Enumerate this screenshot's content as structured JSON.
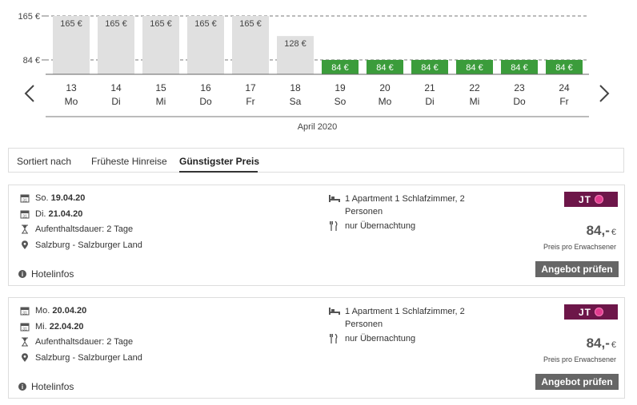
{
  "chart_data": {
    "type": "bar",
    "ylim": [
      0,
      165
    ],
    "yticks": [
      {
        "value": 165,
        "label": "165 €"
      },
      {
        "value": 84,
        "label": "84 €"
      }
    ],
    "xlabel": "April 2020",
    "categories": [
      {
        "day": "13",
        "weekday": "Mo"
      },
      {
        "day": "14",
        "weekday": "Di"
      },
      {
        "day": "15",
        "weekday": "Mi"
      },
      {
        "day": "16",
        "weekday": "Do"
      },
      {
        "day": "17",
        "weekday": "Fr"
      },
      {
        "day": "18",
        "weekday": "Sa"
      },
      {
        "day": "19",
        "weekday": "So"
      },
      {
        "day": "20",
        "weekday": "Mo"
      },
      {
        "day": "21",
        "weekday": "Di"
      },
      {
        "day": "22",
        "weekday": "Mi"
      },
      {
        "day": "23",
        "weekday": "Do"
      },
      {
        "day": "24",
        "weekday": "Fr"
      }
    ],
    "values": [
      165,
      165,
      165,
      165,
      165,
      128,
      84,
      84,
      84,
      84,
      84,
      84
    ],
    "value_labels": [
      "165 €",
      "165 €",
      "165 €",
      "165 €",
      "165 €",
      "128 €",
      "84 €",
      "84 €",
      "84 €",
      "84 €",
      "84 €",
      "84 €"
    ],
    "colors": {
      "default": "#e0e0e0",
      "cheapest": "#3b9c3b",
      "label_default": "#444444",
      "label_cheapest": "#ffffff"
    }
  },
  "sort": {
    "label": "Sortiert nach",
    "options": [
      {
        "label": "Früheste Hinreise",
        "active": false
      },
      {
        "label": "Günstigster Preis",
        "active": true
      }
    ]
  },
  "offers": [
    {
      "depart_prefix": "So.",
      "depart_date": "19.04.20",
      "return_prefix": "Di.",
      "return_date": "21.04.20",
      "duration": "Aufenthaltsdauer: 2 Tage",
      "location": "Salzburg - Salzburger Land",
      "room": "1 Apartment 1 Schlafzimmer, 2 Personen",
      "board": "nur Übernachtung",
      "logo": "JT",
      "price": "84,-",
      "currency": "€",
      "price_note": "Preis pro Erwachsener",
      "button": "Angebot prüfen",
      "hotelinfo": "Hotelinfos"
    },
    {
      "depart_prefix": "Mo.",
      "depart_date": "20.04.20",
      "return_prefix": "Mi.",
      "return_date": "22.04.20",
      "duration": "Aufenthaltsdauer: 2 Tage",
      "location": "Salzburg - Salzburger Land",
      "room": "1 Apartment 1 Schlafzimmer, 2 Personen",
      "board": "nur Übernachtung",
      "logo": "JT",
      "price": "84,-",
      "currency": "€",
      "price_note": "Preis pro Erwachsener",
      "button": "Angebot prüfen",
      "hotelinfo": "Hotelinfos"
    }
  ],
  "icons": {
    "prev": "chevron-left-icon",
    "next": "chevron-right-icon",
    "calendar": "calendar-icon",
    "duration": "hourglass-icon",
    "location": "location-pin-icon",
    "room": "bed-icon",
    "board": "cutlery-icon",
    "info": "info-icon"
  }
}
